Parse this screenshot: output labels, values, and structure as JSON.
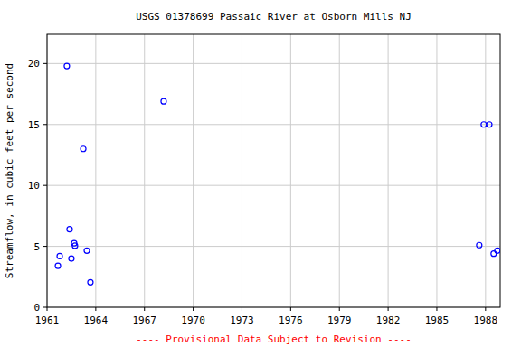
{
  "chart_data": {
    "type": "scatter",
    "title": "USGS 01378699 Passaic River at Osborn Mills NJ",
    "y_label": "Streamflow, in cubic feet per second",
    "annotation": "---- Provisional Data Subject to Revision ----",
    "x": [
      1961.67,
      1961.78,
      1962.22,
      1962.39,
      1962.5,
      1962.67,
      1962.72,
      1963.23,
      1963.45,
      1963.67,
      1968.18,
      1987.61,
      1987.89,
      1988.23,
      1988.5,
      1988.73
    ],
    "values": [
      3.4,
      4.2,
      19.8,
      6.4,
      4.0,
      5.25,
      5.05,
      13.0,
      4.65,
      2.05,
      16.9,
      5.1,
      15.0,
      15.0,
      4.4,
      4.65
    ],
    "color": "#0000ff",
    "marker": "circle",
    "xlim": [
      1961,
      1988.9
    ],
    "xticks": [
      1961,
      1964,
      1967,
      1970,
      1973,
      1976,
      1979,
      1982,
      1985,
      1988
    ],
    "ylim": [
      0,
      22.4
    ],
    "yticks": [
      0,
      5,
      10,
      15,
      20
    ],
    "grid": true
  }
}
